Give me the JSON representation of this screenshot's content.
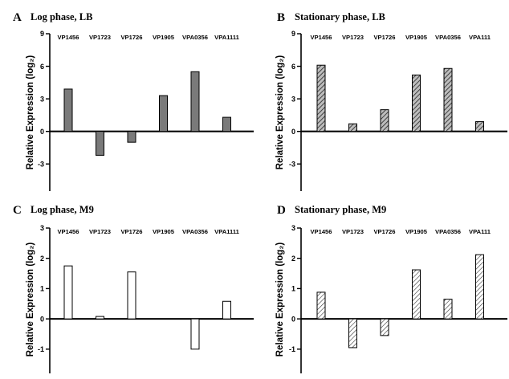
{
  "colors": {
    "solid_grey": "#7a7a7a",
    "hatch_fill": "#bdbdbd",
    "hatch_line": "#333333",
    "open_fill": "#ffffff",
    "stroke": "#000000"
  },
  "chart_data": [
    {
      "type": "bar",
      "panel": "A",
      "title": "Log phase, LB",
      "ylabel": "Relative Expression (log₂)",
      "ylim": [
        -5.5,
        9
      ],
      "yticks": [
        9,
        6,
        3,
        0,
        -3
      ],
      "fill": "solid",
      "categories": [
        "VP1456",
        "VP1723",
        "VP1726",
        "VP1905",
        "VPA0356",
        "VPA1111"
      ],
      "values": [
        3.9,
        -2.2,
        -1.0,
        3.3,
        5.5,
        1.3
      ]
    },
    {
      "type": "bar",
      "panel": "B",
      "title": "Stationary phase, LB",
      "ylabel": "Relative Expression (log₂)",
      "ylim": [
        -5.5,
        9
      ],
      "yticks": [
        9,
        6,
        3,
        0,
        -3
      ],
      "fill": "hatch",
      "categories": [
        "VP1456",
        "VP1723",
        "VP1726",
        "VP1905",
        "VPA0356",
        "VPA111"
      ],
      "values": [
        6.1,
        0.7,
        2.0,
        5.2,
        5.8,
        0.9
      ]
    },
    {
      "type": "bar",
      "panel": "C",
      "title": "Log phase, M9",
      "ylabel": "Relative Expression (log₂)",
      "ylim": [
        -1.8,
        3
      ],
      "yticks": [
        3,
        2,
        1,
        0,
        -1
      ],
      "fill": "open",
      "categories": [
        "VP1456",
        "VP1723",
        "VP1726",
        "VP1905",
        "VPA0356",
        "VPA1111"
      ],
      "values": [
        1.75,
        0.08,
        1.55,
        0,
        -1.0,
        0.58
      ]
    },
    {
      "type": "bar",
      "panel": "D",
      "title": "Stationary phase, M9",
      "ylabel": "Relative Expression (log₂)",
      "ylim": [
        -1.8,
        3
      ],
      "yticks": [
        3,
        2,
        1,
        0,
        -1
      ],
      "fill": "light-hatch",
      "categories": [
        "VP1456",
        "VP1723",
        "VP1726",
        "VP1905",
        "VPA0356",
        "VPA111"
      ],
      "values": [
        0.88,
        -0.95,
        -0.55,
        1.62,
        0.65,
        2.12
      ]
    }
  ]
}
